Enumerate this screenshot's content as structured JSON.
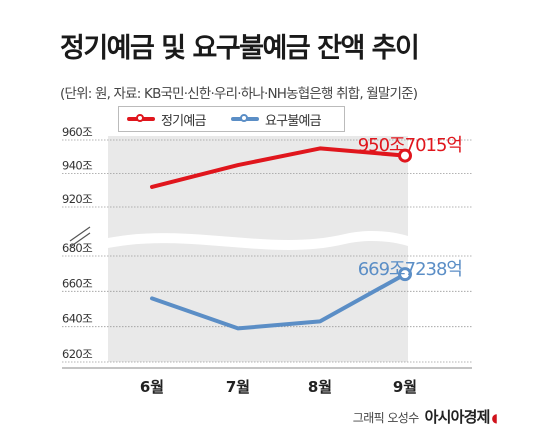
{
  "title": "정기예금 및 요구불예금 잔액 추이",
  "subtitle": "(단위: 원, 자료: KB국민·신한·우리·하나·NH농협은행 취합, 월말기준)",
  "credit": {
    "prefix": "그래픽 오성수",
    "brand": "아시아경제"
  },
  "colors": {
    "deposit": "#e0161d",
    "demand": "#5b8ec6",
    "highlight_band": "#e9e9e9"
  },
  "chart_data": {
    "type": "line",
    "categories": [
      "6월",
      "7월",
      "8월",
      "9월"
    ],
    "axis_break": true,
    "grid": true,
    "legend_position": "top-left",
    "upper_panel": {
      "ylim": [
        920,
        960
      ],
      "ticks": [
        "920조",
        "940조",
        "960조"
      ],
      "tick_values": [
        920,
        940,
        960
      ]
    },
    "lower_panel": {
      "ylim": [
        620,
        680
      ],
      "ticks": [
        "620조",
        "640조",
        "660조",
        "680조"
      ],
      "tick_values": [
        620,
        640,
        660,
        680
      ]
    },
    "series": [
      {
        "name": "정기예금",
        "panel": "upper",
        "values": [
          932,
          945,
          955,
          950.7015
        ],
        "end_label": "950조7015억"
      },
      {
        "name": "요구불예금",
        "panel": "lower",
        "values": [
          656,
          639,
          643,
          669.7238
        ],
        "end_label": "669조7238억"
      }
    ]
  }
}
